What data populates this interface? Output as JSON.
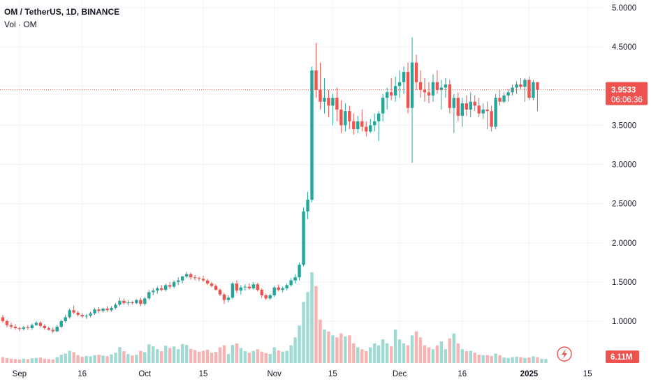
{
  "legend": {
    "symbol": "OM / TetherUS, 1D, BINANCE",
    "volume": "Vol · OM"
  },
  "colors": {
    "up": "#26a69a",
    "down": "#ef5350",
    "up_volume": "#9ed9d2",
    "down_volume": "#f6b3b2",
    "grid": "#f0f3fa",
    "axis_text": "#131722",
    "volume_badge": "#ef5350",
    "last_price_line": "#ef5350"
  },
  "icons": {
    "lightning": "lightning-icon"
  },
  "chart_data": {
    "type": "candlestick",
    "ylim": [
      0.5,
      5.1
    ],
    "yticks": [
      "5.0000",
      "4.5000",
      "4.0000",
      "3.5000",
      "3.0000",
      "2.5000",
      "2.0000",
      "1.5000",
      "1.0000"
    ],
    "ytick_values": [
      5.0,
      4.5,
      4.0,
      3.5,
      3.0,
      2.5,
      2.0,
      1.5,
      1.0
    ],
    "xticks": [
      {
        "label": "Sep",
        "bar": 4,
        "bold": false
      },
      {
        "label": "16",
        "bar": 19,
        "bold": false
      },
      {
        "label": "Oct",
        "bar": 34,
        "bold": false
      },
      {
        "label": "15",
        "bar": 48,
        "bold": false
      },
      {
        "label": "Nov",
        "bar": 65,
        "bold": false
      },
      {
        "label": "15",
        "bar": 79,
        "bold": false
      },
      {
        "label": "Dec",
        "bar": 95,
        "bold": false
      },
      {
        "label": "16",
        "bar": 110,
        "bold": false
      },
      {
        "label": "2025",
        "bar": 126,
        "bold": true
      },
      {
        "label": "15",
        "bar": 140,
        "bold": false
      }
    ],
    "last_price": "3.9533",
    "last_price_value": 3.9533,
    "countdown": "06:06:36",
    "volume_label": "6.11M",
    "grid": true,
    "candles": [
      [
        1.05,
        1.08,
        0.98,
        1.0
      ],
      [
        1.0,
        1.02,
        0.92,
        0.95
      ],
      [
        0.95,
        0.98,
        0.9,
        0.93
      ],
      [
        0.93,
        0.96,
        0.89,
        0.91
      ],
      [
        0.91,
        0.93,
        0.87,
        0.9
      ],
      [
        0.9,
        0.94,
        0.88,
        0.92
      ],
      [
        0.92,
        0.95,
        0.89,
        0.91
      ],
      [
        0.91,
        0.97,
        0.89,
        0.95
      ],
      [
        0.95,
        1.0,
        0.94,
        0.98
      ],
      [
        0.98,
        1.0,
        0.92,
        0.94
      ],
      [
        0.94,
        0.96,
        0.89,
        0.91
      ],
      [
        0.91,
        0.93,
        0.88,
        0.89
      ],
      [
        0.89,
        0.92,
        0.85,
        0.87
      ],
      [
        0.87,
        0.95,
        0.86,
        0.93
      ],
      [
        0.93,
        1.02,
        0.91,
        1.0
      ],
      [
        1.0,
        1.08,
        0.98,
        1.05
      ],
      [
        1.05,
        1.16,
        1.03,
        1.14
      ],
      [
        1.14,
        1.2,
        1.09,
        1.11
      ],
      [
        1.11,
        1.13,
        1.06,
        1.08
      ],
      [
        1.08,
        1.1,
        1.04,
        1.06
      ],
      [
        1.06,
        1.09,
        1.03,
        1.07
      ],
      [
        1.07,
        1.12,
        1.05,
        1.1
      ],
      [
        1.1,
        1.17,
        1.08,
        1.15
      ],
      [
        1.15,
        1.18,
        1.1,
        1.13
      ],
      [
        1.13,
        1.17,
        1.11,
        1.16
      ],
      [
        1.16,
        1.19,
        1.12,
        1.14
      ],
      [
        1.14,
        1.19,
        1.12,
        1.17
      ],
      [
        1.17,
        1.23,
        1.15,
        1.21
      ],
      [
        1.21,
        1.3,
        1.19,
        1.26
      ],
      [
        1.26,
        1.29,
        1.21,
        1.23
      ],
      [
        1.23,
        1.27,
        1.2,
        1.24
      ],
      [
        1.24,
        1.26,
        1.21,
        1.23
      ],
      [
        1.23,
        1.28,
        1.22,
        1.27
      ],
      [
        1.27,
        1.3,
        1.19,
        1.22
      ],
      [
        1.22,
        1.31,
        1.2,
        1.29
      ],
      [
        1.29,
        1.4,
        1.27,
        1.37
      ],
      [
        1.37,
        1.42,
        1.33,
        1.39
      ],
      [
        1.39,
        1.44,
        1.35,
        1.42
      ],
      [
        1.42,
        1.46,
        1.38,
        1.4
      ],
      [
        1.4,
        1.48,
        1.38,
        1.46
      ],
      [
        1.46,
        1.5,
        1.41,
        1.44
      ],
      [
        1.44,
        1.52,
        1.42,
        1.5
      ],
      [
        1.5,
        1.56,
        1.46,
        1.52
      ],
      [
        1.52,
        1.58,
        1.48,
        1.57
      ],
      [
        1.57,
        1.63,
        1.55,
        1.6
      ],
      [
        1.6,
        1.62,
        1.53,
        1.56
      ],
      [
        1.56,
        1.59,
        1.52,
        1.55
      ],
      [
        1.55,
        1.57,
        1.51,
        1.54
      ],
      [
        1.54,
        1.58,
        1.5,
        1.52
      ],
      [
        1.52,
        1.54,
        1.46,
        1.48
      ],
      [
        1.48,
        1.5,
        1.43,
        1.45
      ],
      [
        1.45,
        1.47,
        1.39,
        1.4
      ],
      [
        1.4,
        1.42,
        1.32,
        1.34
      ],
      [
        1.34,
        1.36,
        1.22,
        1.27
      ],
      [
        1.27,
        1.33,
        1.24,
        1.3
      ],
      [
        1.3,
        1.5,
        1.28,
        1.48
      ],
      [
        1.48,
        1.52,
        1.36,
        1.39
      ],
      [
        1.39,
        1.46,
        1.34,
        1.43
      ],
      [
        1.43,
        1.47,
        1.39,
        1.44
      ],
      [
        1.44,
        1.48,
        1.4,
        1.42
      ],
      [
        1.42,
        1.5,
        1.4,
        1.47
      ],
      [
        1.47,
        1.49,
        1.38,
        1.4
      ],
      [
        1.4,
        1.42,
        1.3,
        1.33
      ],
      [
        1.33,
        1.35,
        1.27,
        1.29
      ],
      [
        1.29,
        1.35,
        1.27,
        1.33
      ],
      [
        1.33,
        1.45,
        1.31,
        1.43
      ],
      [
        1.43,
        1.47,
        1.38,
        1.4
      ],
      [
        1.4,
        1.44,
        1.37,
        1.42
      ],
      [
        1.42,
        1.48,
        1.39,
        1.46
      ],
      [
        1.46,
        1.55,
        1.44,
        1.52
      ],
      [
        1.52,
        1.6,
        1.48,
        1.56
      ],
      [
        1.56,
        1.75,
        1.52,
        1.72
      ],
      [
        1.72,
        2.45,
        1.7,
        2.4
      ],
      [
        2.4,
        2.65,
        2.3,
        2.55
      ],
      [
        2.55,
        4.25,
        2.52,
        4.2
      ],
      [
        4.2,
        4.55,
        3.85,
        3.95
      ],
      [
        3.95,
        4.3,
        3.7,
        3.8
      ],
      [
        3.8,
        4.1,
        3.65,
        3.85
      ],
      [
        3.85,
        3.95,
        3.6,
        3.75
      ],
      [
        3.75,
        3.9,
        3.5,
        3.85
      ],
      [
        3.85,
        3.98,
        3.55,
        3.7
      ],
      [
        3.7,
        3.82,
        3.4,
        3.5
      ],
      [
        3.5,
        3.78,
        3.42,
        3.68
      ],
      [
        3.68,
        3.75,
        3.45,
        3.55
      ],
      [
        3.55,
        3.65,
        3.38,
        3.45
      ],
      [
        3.45,
        3.62,
        3.4,
        3.55
      ],
      [
        3.55,
        3.7,
        3.42,
        3.48
      ],
      [
        3.48,
        3.55,
        3.36,
        3.42
      ],
      [
        3.42,
        3.58,
        3.4,
        3.5
      ],
      [
        3.5,
        3.65,
        3.42,
        3.55
      ],
      [
        3.55,
        3.68,
        3.3,
        3.65
      ],
      [
        3.65,
        3.9,
        3.55,
        3.85
      ],
      [
        3.85,
        3.98,
        3.7,
        3.92
      ],
      [
        3.92,
        4.1,
        3.82,
        3.88
      ],
      [
        3.88,
        4.12,
        3.8,
        4.0
      ],
      [
        4.0,
        4.2,
        3.85,
        4.05
      ],
      [
        4.05,
        4.25,
        3.9,
        4.18
      ],
      [
        4.18,
        4.3,
        3.65,
        3.72
      ],
      [
        3.72,
        4.62,
        3.02,
        4.3
      ],
      [
        4.3,
        4.4,
        3.95,
        4.05
      ],
      [
        4.05,
        4.2,
        3.85,
        3.95
      ],
      [
        3.95,
        4.1,
        3.8,
        3.92
      ],
      [
        3.92,
        4.05,
        3.78,
        3.88
      ],
      [
        3.88,
        4.15,
        3.8,
        4.05
      ],
      [
        4.05,
        4.2,
        3.9,
        3.95
      ],
      [
        3.95,
        4.08,
        3.7,
        3.98
      ],
      [
        3.98,
        4.1,
        3.85,
        4.02
      ],
      [
        4.02,
        4.08,
        3.65,
        3.72
      ],
      [
        3.72,
        3.9,
        3.4,
        3.85
      ],
      [
        3.85,
        3.92,
        3.55,
        3.62
      ],
      [
        3.62,
        3.85,
        3.48,
        3.78
      ],
      [
        3.78,
        3.88,
        3.62,
        3.7
      ],
      [
        3.7,
        3.92,
        3.6,
        3.8
      ],
      [
        3.8,
        3.88,
        3.68,
        3.75
      ],
      [
        3.75,
        3.85,
        3.6,
        3.65
      ],
      [
        3.65,
        3.78,
        3.58,
        3.7
      ],
      [
        3.7,
        3.8,
        3.45,
        3.68
      ],
      [
        3.68,
        3.75,
        3.42,
        3.48
      ],
      [
        3.48,
        3.9,
        3.45,
        3.85
      ],
      [
        3.85,
        3.95,
        3.75,
        3.8
      ],
      [
        3.8,
        3.92,
        3.78,
        3.88
      ],
      [
        3.88,
        3.96,
        3.8,
        3.92
      ],
      [
        3.92,
        4.02,
        3.88,
        3.98
      ],
      [
        3.98,
        4.06,
        3.9,
        4.02
      ],
      [
        4.02,
        4.1,
        3.96,
        3.99
      ],
      [
        3.99,
        4.1,
        3.8,
        4.08
      ],
      [
        4.08,
        4.12,
        3.82,
        3.85
      ],
      [
        3.85,
        4.08,
        3.82,
        4.05
      ],
      [
        4.05,
        4.05,
        3.68,
        3.9533
      ]
    ],
    "volumes": [
      0.3,
      0.25,
      0.22,
      0.2,
      0.18,
      0.22,
      0.2,
      0.24,
      0.26,
      0.28,
      0.22,
      0.2,
      0.18,
      0.3,
      0.42,
      0.48,
      0.62,
      0.55,
      0.4,
      0.32,
      0.36,
      0.34,
      0.4,
      0.42,
      0.38,
      0.35,
      0.44,
      0.52,
      0.8,
      0.6,
      0.45,
      0.38,
      0.42,
      0.62,
      0.55,
      0.95,
      0.85,
      0.7,
      0.6,
      0.88,
      0.76,
      0.84,
      0.7,
      0.96,
      0.92,
      0.72,
      0.66,
      0.58,
      0.62,
      0.68,
      0.52,
      0.56,
      0.8,
      0.9,
      0.46,
      0.92,
      1.0,
      0.76,
      0.6,
      0.52,
      0.62,
      0.7,
      0.58,
      0.5,
      0.46,
      0.8,
      0.64,
      0.58,
      0.62,
      0.9,
      1.3,
      1.9,
      3.1,
      3.6,
      4.6,
      3.9,
      2.2,
      1.7,
      1.6,
      1.4,
      1.3,
      1.5,
      1.35,
      1.4,
      1.0,
      0.8,
      0.7,
      0.6,
      0.8,
      1.0,
      0.9,
      1.2,
      1.0,
      0.85,
      1.7,
      1.2,
      1.0,
      0.9,
      1.4,
      1.6,
      1.3,
      0.9,
      0.8,
      0.7,
      0.9,
      1.1,
      0.7,
      1.25,
      1.5,
      1.0,
      0.7,
      0.6,
      0.62,
      0.52,
      0.42,
      0.4,
      0.4,
      0.36,
      0.48,
      0.4,
      0.28,
      0.26,
      0.3,
      0.32,
      0.3,
      0.26,
      0.28,
      0.34,
      0.3,
      0.22,
      0.2
    ],
    "volume_max": 4.6
  }
}
